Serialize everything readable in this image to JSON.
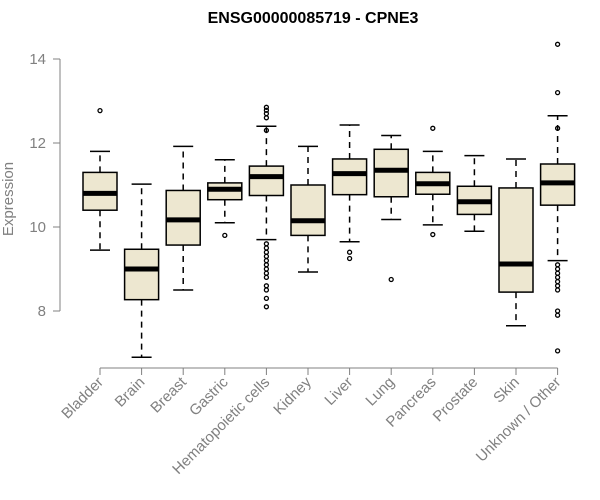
{
  "chart_data": {
    "type": "box",
    "title": "ENSG00000085719 - CPNE3",
    "ylabel": "Expression",
    "xlabel": "",
    "ylim": [
      6.7,
      14.6
    ],
    "yticks": [
      8,
      10,
      12,
      14
    ],
    "grid": false,
    "box_fill": "#EDE7D0",
    "categories": [
      "Bladder",
      "Brain",
      "Breast",
      "Gastric",
      "Hematopoietic cells",
      "Kidney",
      "Liver",
      "Lung",
      "Pancreas",
      "Prostate",
      "Skin",
      "Unknown / Other"
    ],
    "boxes": [
      {
        "category": "Bladder",
        "whisker_low": 9.45,
        "q1": 10.4,
        "median": 10.8,
        "q3": 11.3,
        "whisker_high": 11.8,
        "outliers": [
          12.77
        ]
      },
      {
        "category": "Brain",
        "whisker_low": 6.9,
        "q1": 8.27,
        "median": 9.0,
        "q3": 9.47,
        "whisker_high": 11.02,
        "outliers": []
      },
      {
        "category": "Breast",
        "whisker_low": 8.5,
        "q1": 9.57,
        "median": 10.17,
        "q3": 10.87,
        "whisker_high": 11.92,
        "outliers": []
      },
      {
        "category": "Gastric",
        "whisker_low": 10.1,
        "q1": 10.65,
        "median": 10.9,
        "q3": 11.05,
        "whisker_high": 11.6,
        "outliers": [
          9.8
        ]
      },
      {
        "category": "Hematopoietic cells",
        "whisker_low": 9.7,
        "q1": 10.75,
        "median": 11.2,
        "q3": 11.45,
        "whisker_high": 12.4,
        "outliers": [
          12.85,
          12.78,
          12.7,
          12.6,
          12.3,
          9.6,
          9.5,
          9.4,
          9.3,
          9.2,
          9.1,
          9.0,
          8.9,
          8.8,
          8.6,
          8.5,
          8.3,
          8.1
        ]
      },
      {
        "category": "Kidney",
        "whisker_low": 8.93,
        "q1": 9.8,
        "median": 10.15,
        "q3": 11.0,
        "whisker_high": 11.92,
        "outliers": []
      },
      {
        "category": "Liver",
        "whisker_low": 9.65,
        "q1": 10.77,
        "median": 11.27,
        "q3": 11.62,
        "whisker_high": 12.43,
        "outliers": [
          9.4,
          9.25
        ]
      },
      {
        "category": "Lung",
        "whisker_low": 10.18,
        "q1": 10.72,
        "median": 11.35,
        "q3": 11.85,
        "whisker_high": 12.18,
        "outliers": [
          8.75
        ]
      },
      {
        "category": "Pancreas",
        "whisker_low": 10.05,
        "q1": 10.78,
        "median": 11.03,
        "q3": 11.3,
        "whisker_high": 11.8,
        "outliers": [
          12.35,
          9.82
        ]
      },
      {
        "category": "Prostate",
        "whisker_low": 9.9,
        "q1": 10.3,
        "median": 10.6,
        "q3": 10.97,
        "whisker_high": 11.7,
        "outliers": []
      },
      {
        "category": "Skin",
        "whisker_low": 7.65,
        "q1": 8.45,
        "median": 9.12,
        "q3": 10.93,
        "whisker_high": 11.62,
        "outliers": []
      },
      {
        "category": "Unknown / Other",
        "whisker_low": 9.2,
        "q1": 10.52,
        "median": 11.05,
        "q3": 11.5,
        "whisker_high": 12.65,
        "outliers": [
          14.35,
          13.2,
          12.35,
          9.1,
          9.0,
          8.9,
          8.8,
          8.7,
          8.6,
          8.5,
          8.0,
          7.9,
          7.05
        ]
      }
    ]
  }
}
